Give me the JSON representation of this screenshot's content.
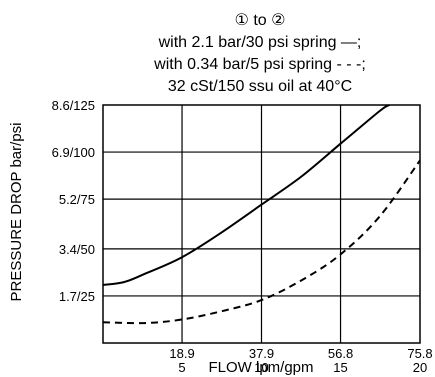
{
  "chart_data": {
    "type": "line",
    "title_lines": [
      "① to ②",
      "with 2.1 bar/30 psi spring —;",
      "with 0.34 bar/5 psi spring - - -;",
      "32 cSt/150 ssu oil at 40°C"
    ],
    "xlabel": "FLOW lpm/gpm",
    "ylabel": "PRESSURE DROP bar/psi",
    "xlim": [
      0,
      75.8
    ],
    "ylim": [
      0,
      8.6
    ],
    "x_ticks": [
      {
        "value": 18.9,
        "lpm": "18.9",
        "gpm": "5"
      },
      {
        "value": 37.9,
        "lpm": "37.9",
        "gpm": "10"
      },
      {
        "value": 56.8,
        "lpm": "56.8",
        "gpm": "15"
      },
      {
        "value": 75.8,
        "lpm": "75.8",
        "gpm": "20"
      }
    ],
    "y_ticks": [
      {
        "value": 1.7,
        "label": "1.7/25"
      },
      {
        "value": 3.4,
        "label": "3.4/50"
      },
      {
        "value": 5.2,
        "label": "5.2/75"
      },
      {
        "value": 6.9,
        "label": "6.9/100"
      },
      {
        "value": 8.6,
        "label": "8.6/125"
      }
    ],
    "grid": true,
    "series": [
      {
        "style": "solid",
        "points": [
          [
            0,
            2.1
          ],
          [
            5,
            2.2
          ],
          [
            10,
            2.5
          ],
          [
            18.9,
            3.1
          ],
          [
            28.4,
            4.0
          ],
          [
            37.9,
            5.0
          ],
          [
            47.3,
            6.0
          ],
          [
            56.8,
            7.2
          ],
          [
            66.3,
            8.4
          ],
          [
            68.5,
            8.6
          ]
        ]
      },
      {
        "style": "dashed",
        "points": [
          [
            0,
            0.75
          ],
          [
            10,
            0.72
          ],
          [
            18.9,
            0.85
          ],
          [
            28.4,
            1.15
          ],
          [
            37.9,
            1.55
          ],
          [
            47.3,
            2.25
          ],
          [
            56.8,
            3.2
          ],
          [
            66.3,
            4.6
          ],
          [
            75.8,
            6.6
          ]
        ]
      }
    ]
  }
}
